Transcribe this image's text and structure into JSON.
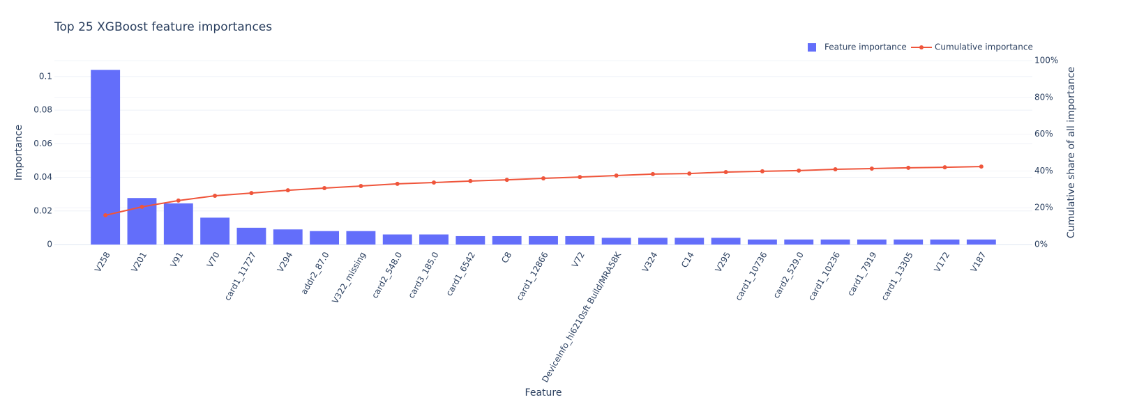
{
  "chart_data": {
    "type": "combo",
    "title": "Top 25 XGBoost feature importances",
    "x_label": "Feature",
    "y_label": "Importance",
    "y2_label": "Cumulative share of all importance",
    "categories": [
      "V258",
      "V201",
      "V91",
      "V70",
      "card1_11727",
      "V294",
      "addr2_87.0",
      "V322_missing",
      "card2_548.0",
      "card3_185.0",
      "card1_6542",
      "C8",
      "card1_12866",
      "V72",
      "DeviceInfo_hi6210sft Build/MRA58K",
      "V324",
      "C14",
      "V295",
      "card1_10736",
      "card2_529.0",
      "card1_10236",
      "card1_7919",
      "card1_13305",
      "V172",
      "V187"
    ],
    "series": [
      {
        "name": "Feature importance",
        "type": "bar",
        "color": "#636efa",
        "values": [
          0.104,
          0.0277,
          0.0245,
          0.016,
          0.01,
          0.009,
          0.008,
          0.008,
          0.006,
          0.006,
          0.005,
          0.005,
          0.005,
          0.005,
          0.004,
          0.004,
          0.004,
          0.004,
          0.003,
          0.003,
          0.003,
          0.003,
          0.003,
          0.003,
          0.003
        ]
      },
      {
        "name": "Cumulative importance",
        "type": "line",
        "axis": "y2",
        "color": "#ef553b",
        "values": [
          15.9,
          20.5,
          23.9,
          26.5,
          28,
          29.5,
          30.7,
          31.8,
          33,
          33.7,
          34.5,
          35.2,
          36,
          36.7,
          37.5,
          38.3,
          38.6,
          39.4,
          39.8,
          40.2,
          40.9,
          41.3,
          41.7,
          42,
          42.4
        ]
      }
    ],
    "ylim": [
      0,
      0.1095
    ],
    "yticks": [
      0,
      0.02,
      0.04,
      0.06,
      0.08,
      0.1
    ],
    "y2lim": [
      0,
      100
    ],
    "y2ticks": [
      {
        "value": 0,
        "label": "0%"
      },
      {
        "value": 20,
        "label": "20%"
      },
      {
        "value": 40,
        "label": "40%"
      },
      {
        "value": 60,
        "label": "60%"
      },
      {
        "value": 80,
        "label": "80%"
      },
      {
        "value": 100,
        "label": "100%"
      }
    ],
    "grid": true,
    "legend": "top-right"
  }
}
